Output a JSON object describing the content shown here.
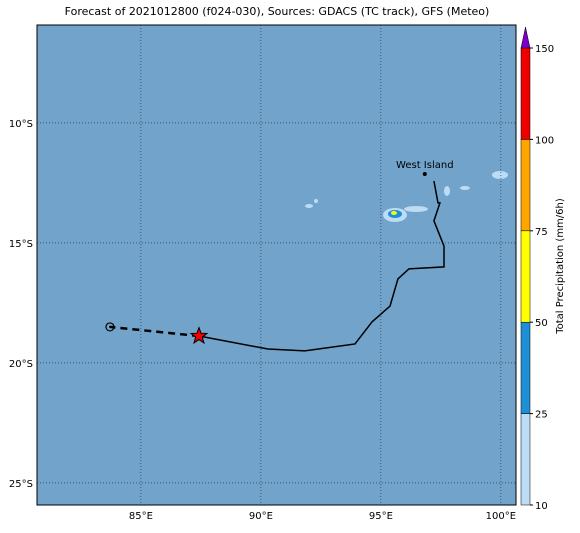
{
  "map": {
    "title": "Forecast of 2021012800 (f024-030), Sources: GDACS (TC track), GFS (Meteo)",
    "xlim": [
      80.67,
      100.63
    ],
    "ylim": [
      -25.92,
      -5.92
    ],
    "xticks": [
      {
        "value": 85,
        "label": "85°E"
      },
      {
        "value": 90,
        "label": "90°E"
      },
      {
        "value": 95,
        "label": "95°E"
      },
      {
        "value": 100,
        "label": "100°E"
      }
    ],
    "yticks": [
      {
        "value": -10,
        "label": "10°S"
      },
      {
        "value": -15,
        "label": "15°S"
      },
      {
        "value": -20,
        "label": "20°S"
      },
      {
        "value": -25,
        "label": "25°S"
      }
    ],
    "ocean_color": "#72a3cb",
    "grid": true,
    "place": {
      "name": "West Island",
      "lon": 96.83,
      "lat": -12.13
    },
    "track": {
      "lon": [
        97.21,
        97.38,
        97.46,
        97.21,
        97.63,
        97.63,
        96.17,
        95.71,
        95.38,
        94.63,
        93.92,
        91.83,
        90.29,
        87.42
      ],
      "lat": [
        -12.42,
        -13.33,
        -13.33,
        -14.08,
        -15.13,
        -16.0,
        -16.08,
        -16.5,
        -17.63,
        -18.29,
        -19.21,
        -19.5,
        -19.42,
        -18.88
      ]
    },
    "forecast": {
      "lon": [
        87.42,
        83.71
      ],
      "lat": [
        -18.88,
        -18.5
      ]
    }
  },
  "colorbar": {
    "label": "Total Precipitation (mm/6h)",
    "levels": [
      10,
      25,
      50,
      75,
      100,
      150
    ],
    "colors": [
      "#bcdcf5",
      "#1e8fd6",
      "#ffff00",
      "#ffa500",
      "#ee0000"
    ],
    "extend_color": "#7a00c8"
  }
}
